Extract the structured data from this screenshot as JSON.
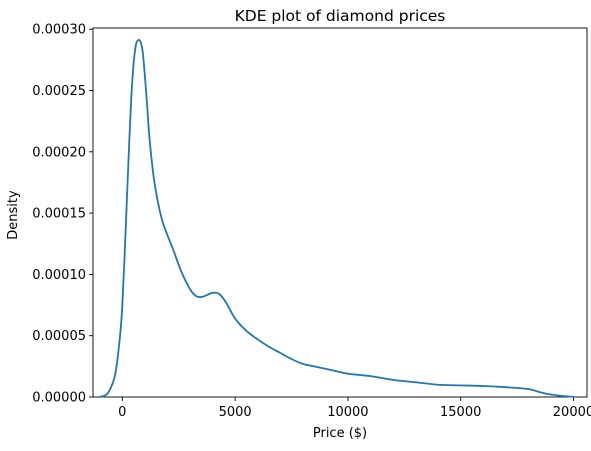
{
  "chart_data": {
    "type": "line",
    "title": "KDE plot of diamond prices",
    "xlabel": "Price ($)",
    "ylabel": "Density",
    "xlim": [
      -1300,
      20600
    ],
    "ylim": [
      0,
      0.000301
    ],
    "xticks": [
      0,
      5000,
      10000,
      15000,
      20000
    ],
    "xtick_labels": [
      "0",
      "5000",
      "10000",
      "15000",
      "20000"
    ],
    "yticks": [
      0,
      5e-05,
      0.0001,
      0.00015,
      0.0002,
      0.00025,
      0.0003
    ],
    "ytick_labels": [
      "0.00000",
      "0.00005",
      "0.00010",
      "0.00015",
      "0.00020",
      "0.00025",
      "0.00030"
    ],
    "grid": false,
    "line_color": "#1f77b4",
    "series": [
      {
        "x": [
          -1000,
          -700,
          -500,
          -300,
          -100,
          0,
          100,
          200,
          300,
          400,
          500,
          600,
          700,
          800,
          900,
          1000,
          1100,
          1200,
          1400,
          1600,
          1800,
          2000,
          2300,
          2600,
          3000,
          3300,
          3600,
          4000,
          4300,
          4600,
          5000,
          5500,
          6000,
          6500,
          7000,
          7500,
          8000,
          8500,
          9000,
          9500,
          10000,
          11000,
          12000,
          13000,
          14000,
          15000,
          16000,
          17000,
          18000,
          18500,
          19000,
          19500,
          20000
        ],
        "y": [
          0,
          2e-06,
          8e-06,
          2e-05,
          5e-05,
          7.5e-05,
          0.000115,
          0.00016,
          0.000205,
          0.000245,
          0.000272,
          0.000287,
          0.000291,
          0.00029,
          0.000282,
          0.000262,
          0.000238,
          0.000212,
          0.000178,
          0.000157,
          0.000142,
          0.000132,
          0.000118,
          0.000103,
          8.8e-05,
          8.2e-05,
          8.2e-05,
          8.5e-05,
          8.4e-05,
          7.7e-05,
          6.4e-05,
          5.4e-05,
          4.7e-05,
          4.1e-05,
          3.6e-05,
          3.1e-05,
          2.7e-05,
          2.5e-05,
          2.3e-05,
          2.1e-05,
          1.9e-05,
          1.7e-05,
          1.4e-05,
          1.2e-05,
          1e-05,
          9.5e-06,
          9e-06,
          8e-06,
          6.5e-06,
          4e-06,
          2e-06,
          8e-07,
          2e-07
        ]
      }
    ]
  }
}
